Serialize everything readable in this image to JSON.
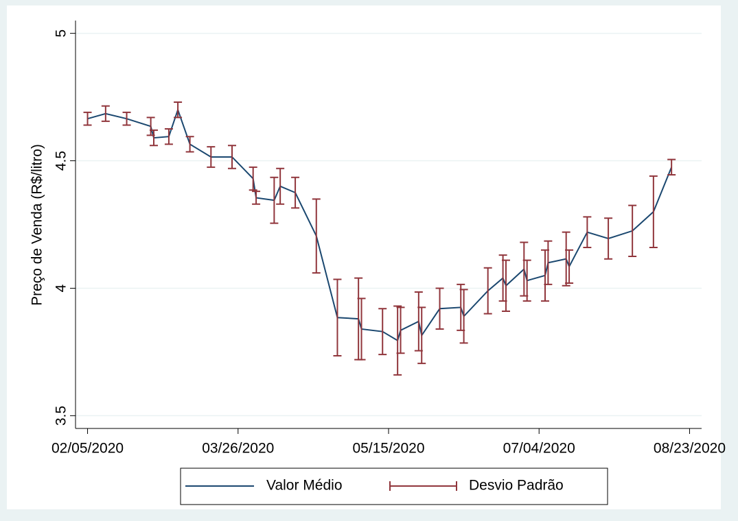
{
  "chart_data": {
    "type": "line-errorbar",
    "y_label": "Preço de Venda (R$/litro)",
    "x": [
      "02/05/2020",
      "02/11/2020",
      "02/18/2020",
      "02/26/2020",
      "02/27/2020",
      "03/03/2020",
      "03/06/2020",
      "03/10/2020",
      "03/17/2020",
      "03/24/2020",
      "03/31/2020",
      "04/01/2020",
      "04/07/2020",
      "04/09/2020",
      "04/14/2020",
      "04/21/2020",
      "04/28/2020",
      "05/05/2020",
      "05/06/2020",
      "05/13/2020",
      "05/18/2020",
      "05/19/2020",
      "05/25/2020",
      "05/26/2020",
      "06/01/2020",
      "06/08/2020",
      "06/09/2020",
      "06/17/2020",
      "06/22/2020",
      "06/23/2020",
      "06/29/2020",
      "06/30/2020",
      "07/06/2020",
      "07/07/2020",
      "07/13/2020",
      "07/14/2020",
      "07/20/2020",
      "07/27/2020",
      "08/04/2020",
      "08/11/2020",
      "08/17/2020"
    ],
    "series": [
      {
        "name": "Valor Médio",
        "color": "#1a476f",
        "values": [
          4.665,
          4.685,
          4.665,
          4.635,
          4.59,
          4.595,
          4.7,
          4.565,
          4.515,
          4.515,
          4.43,
          4.355,
          4.345,
          4.4,
          4.375,
          4.205,
          3.885,
          3.88,
          3.84,
          3.83,
          3.795,
          3.835,
          3.87,
          3.815,
          3.92,
          3.925,
          3.89,
          3.99,
          4.04,
          4.01,
          4.075,
          4.03,
          4.05,
          4.1,
          4.115,
          4.085,
          4.22,
          4.195,
          4.225,
          4.3,
          4.475
        ]
      },
      {
        "name": "Desvio Padrão",
        "color": "#90353b",
        "values": [
          0.025,
          0.03,
          0.025,
          0.035,
          0.03,
          0.03,
          0.03,
          0.03,
          0.04,
          0.045,
          0.045,
          0.025,
          0.09,
          0.07,
          0.06,
          0.145,
          0.15,
          0.16,
          0.12,
          0.09,
          0.135,
          0.09,
          0.115,
          0.11,
          0.08,
          0.09,
          0.105,
          0.09,
          0.09,
          0.1,
          0.105,
          0.08,
          0.1,
          0.085,
          0.105,
          0.065,
          0.06,
          0.08,
          0.1,
          0.14,
          0.03
        ]
      }
    ],
    "xlim": [
      "02/01/2020",
      "08/27/2020"
    ],
    "xticks": [
      "02/05/2020",
      "03/26/2020",
      "05/15/2020",
      "07/04/2020",
      "08/23/2020"
    ],
    "ylim": [
      3.45,
      5.05
    ],
    "yticks": [
      3.5,
      4,
      4.5,
      5
    ],
    "grid": true,
    "legend": "bottom"
  }
}
